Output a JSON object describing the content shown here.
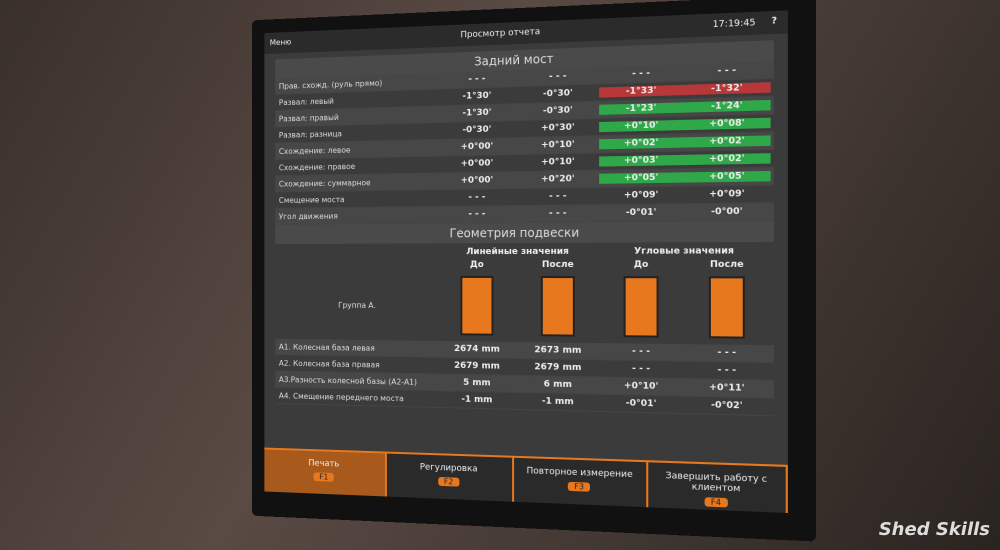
{
  "header": {
    "title": "Просмотр отчета",
    "time": "17:19:45",
    "help": "?",
    "menu": "Меню"
  },
  "rear_axle": {
    "title": "Задний мост",
    "rows": [
      {
        "label": "Прав. схожд. (руль прямо)",
        "cells": [
          "- - -",
          "- - -",
          "- - -",
          "- - -"
        ]
      },
      {
        "label": "Развал: левый",
        "cells": [
          "-1°30'",
          "-0°30'",
          "-1°33'",
          "-1°32'"
        ],
        "color": "#b8383a"
      },
      {
        "label": "Развал: правый",
        "cells": [
          "-1°30'",
          "-0°30'",
          "-1°23'",
          "-1°24'"
        ],
        "color": "#2ea848"
      },
      {
        "label": "Развал: разница",
        "cells": [
          "-0°30'",
          "+0°30'",
          "+0°10'",
          "+0°08'"
        ],
        "color": "#2ea848"
      },
      {
        "label": "Схождение: левое",
        "cells": [
          "+0°00'",
          "+0°10'",
          "+0°02'",
          "+0°02'"
        ],
        "color": "#2ea848"
      },
      {
        "label": "Схождение: правое",
        "cells": [
          "+0°00'",
          "+0°10'",
          "+0°03'",
          "+0°02'"
        ],
        "color": "#2ea848"
      },
      {
        "label": "Схождение: суммарное",
        "cells": [
          "+0°00'",
          "+0°20'",
          "+0°05'",
          "+0°05'"
        ],
        "color": "#2ea848"
      },
      {
        "label": "Смещение моста",
        "cells": [
          "- - -",
          "- - -",
          "+0°09'",
          "+0°09'"
        ]
      },
      {
        "label": "Угол движения",
        "cells": [
          "- - -",
          "- - -",
          "-0°01'",
          "-0°00'"
        ]
      }
    ]
  },
  "geometry": {
    "title": "Геометрия подвески",
    "linear": "Линейные значения",
    "angular": "Угловые значения",
    "columns": [
      "До",
      "После",
      "До",
      "После"
    ],
    "group": "Группа А.",
    "rows": [
      {
        "label": "А1. Колесная база левая",
        "cells": [
          "2674 mm",
          "2673 mm",
          "- - -",
          "- - -"
        ]
      },
      {
        "label": "А2. Колесная база правая",
        "cells": [
          "2679 mm",
          "2679 mm",
          "- - -",
          "- - -"
        ]
      },
      {
        "label": "А3.Разность колесной базы (А2-А1)",
        "cells": [
          "5 mm",
          "6 mm",
          "+0°10'",
          "+0°11'"
        ]
      },
      {
        "label": "А4. Смещение переднего моста",
        "cells": [
          "-1 mm",
          "-1 mm",
          "-0°01'",
          "-0°02'"
        ]
      }
    ]
  },
  "footer": {
    "buttons": [
      {
        "label": "Печать",
        "key": "F1"
      },
      {
        "label": "Регулировка",
        "key": "F2"
      },
      {
        "label": "Повторное измерение",
        "key": "F3"
      },
      {
        "label": "Завершить работу с клиентом",
        "key": "F4"
      }
    ]
  },
  "watermark": "Shed Skills"
}
